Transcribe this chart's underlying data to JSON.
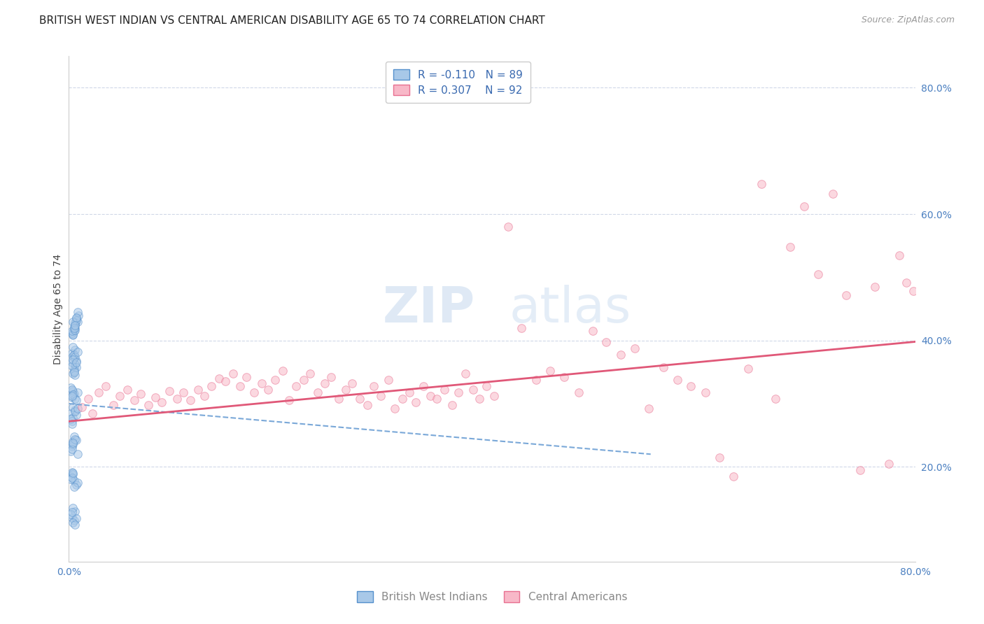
{
  "title": "BRITISH WEST INDIAN VS CENTRAL AMERICAN DISABILITY AGE 65 TO 74 CORRELATION CHART",
  "source": "Source: ZipAtlas.com",
  "ylabel": "Disability Age 65 to 74",
  "xlim": [
    0.0,
    0.8
  ],
  "ylim": [
    0.05,
    0.85
  ],
  "xticks": [
    0.0,
    0.1,
    0.2,
    0.3,
    0.4,
    0.5,
    0.6,
    0.7,
    0.8
  ],
  "xtick_labels": [
    "0.0%",
    "",
    "",
    "",
    "",
    "",
    "",
    "",
    "80.0%"
  ],
  "yticks": [
    0.2,
    0.4,
    0.6,
    0.8
  ],
  "ytick_labels": [
    "20.0%",
    "40.0%",
    "60.0%",
    "80.0%"
  ],
  "blue_scatter_x": [
    0.005,
    0.008,
    0.006,
    0.009,
    0.004,
    0.007,
    0.003,
    0.006,
    0.005,
    0.008,
    0.004,
    0.006,
    0.003,
    0.007,
    0.005,
    0.006,
    0.004,
    0.007,
    0.005,
    0.006,
    0.003,
    0.005,
    0.006,
    0.004,
    0.007,
    0.005,
    0.004,
    0.006,
    0.003,
    0.008,
    0.005,
    0.006,
    0.004,
    0.007,
    0.005,
    0.003,
    0.006,
    0.004,
    0.005,
    0.007,
    0.004,
    0.003,
    0.002,
    0.005,
    0.008,
    0.003,
    0.006,
    0.004,
    0.007,
    0.003,
    0.002,
    0.004,
    0.006,
    0.003,
    0.007,
    0.004,
    0.002,
    0.006,
    0.003,
    0.008,
    0.004,
    0.003,
    0.005,
    0.002,
    0.007,
    0.004,
    0.003,
    0.006,
    0.008,
    0.004,
    0.002,
    0.005,
    0.003,
    0.007,
    0.004,
    0.002,
    0.008,
    0.003,
    0.005,
    0.004,
    0.006,
    0.003,
    0.004,
    0.005,
    0.002,
    0.007,
    0.003,
    0.004,
    0.006
  ],
  "blue_scatter_y": [
    0.415,
    0.43,
    0.42,
    0.44,
    0.408,
    0.435,
    0.412,
    0.425,
    0.418,
    0.445,
    0.41,
    0.428,
    0.415,
    0.432,
    0.422,
    0.416,
    0.43,
    0.436,
    0.42,
    0.424,
    0.38,
    0.372,
    0.385,
    0.375,
    0.368,
    0.378,
    0.39,
    0.374,
    0.365,
    0.382,
    0.355,
    0.362,
    0.348,
    0.358,
    0.352,
    0.36,
    0.345,
    0.37,
    0.35,
    0.365,
    0.32,
    0.31,
    0.325,
    0.315,
    0.318,
    0.322,
    0.308,
    0.314,
    0.305,
    0.312,
    0.285,
    0.278,
    0.29,
    0.272,
    0.282,
    0.295,
    0.276,
    0.288,
    0.268,
    0.292,
    0.24,
    0.232,
    0.248,
    0.225,
    0.242,
    0.236,
    0.228,
    0.244,
    0.22,
    0.238,
    0.185,
    0.178,
    0.192,
    0.172,
    0.188,
    0.18,
    0.175,
    0.183,
    0.168,
    0.19,
    0.13,
    0.12,
    0.135,
    0.115,
    0.125,
    0.118,
    0.128,
    0.112,
    0.108
  ],
  "pink_scatter_x": [
    0.012,
    0.018,
    0.022,
    0.028,
    0.035,
    0.042,
    0.048,
    0.055,
    0.062,
    0.068,
    0.075,
    0.082,
    0.088,
    0.095,
    0.102,
    0.108,
    0.115,
    0.122,
    0.128,
    0.135,
    0.142,
    0.148,
    0.155,
    0.162,
    0.168,
    0.175,
    0.182,
    0.188,
    0.195,
    0.202,
    0.208,
    0.215,
    0.222,
    0.228,
    0.235,
    0.242,
    0.248,
    0.255,
    0.262,
    0.268,
    0.275,
    0.282,
    0.288,
    0.295,
    0.302,
    0.308,
    0.315,
    0.322,
    0.328,
    0.335,
    0.342,
    0.348,
    0.355,
    0.362,
    0.368,
    0.375,
    0.382,
    0.388,
    0.395,
    0.402,
    0.415,
    0.428,
    0.442,
    0.455,
    0.468,
    0.482,
    0.495,
    0.508,
    0.522,
    0.535,
    0.548,
    0.562,
    0.575,
    0.588,
    0.602,
    0.615,
    0.628,
    0.642,
    0.655,
    0.668,
    0.682,
    0.695,
    0.708,
    0.722,
    0.735,
    0.748,
    0.762,
    0.775,
    0.785,
    0.792,
    0.798
  ],
  "pink_scatter_y": [
    0.295,
    0.308,
    0.285,
    0.318,
    0.328,
    0.298,
    0.312,
    0.322,
    0.305,
    0.315,
    0.298,
    0.31,
    0.302,
    0.32,
    0.308,
    0.318,
    0.305,
    0.322,
    0.312,
    0.328,
    0.34,
    0.335,
    0.348,
    0.328,
    0.342,
    0.318,
    0.332,
    0.322,
    0.338,
    0.352,
    0.305,
    0.328,
    0.338,
    0.348,
    0.318,
    0.332,
    0.342,
    0.308,
    0.322,
    0.332,
    0.308,
    0.298,
    0.328,
    0.312,
    0.338,
    0.292,
    0.308,
    0.318,
    0.302,
    0.328,
    0.312,
    0.308,
    0.322,
    0.298,
    0.318,
    0.348,
    0.322,
    0.308,
    0.328,
    0.312,
    0.58,
    0.42,
    0.338,
    0.352,
    0.342,
    0.318,
    0.415,
    0.398,
    0.378,
    0.388,
    0.292,
    0.358,
    0.338,
    0.328,
    0.318,
    0.215,
    0.185,
    0.355,
    0.648,
    0.308,
    0.548,
    0.612,
    0.505,
    0.632,
    0.472,
    0.195,
    0.485,
    0.205,
    0.535,
    0.492,
    0.478
  ],
  "blue_trendline_x": [
    0.0,
    0.55
  ],
  "blue_trendline_y": [
    0.3,
    0.22
  ],
  "pink_trendline_x": [
    0.0,
    0.8
  ],
  "pink_trendline_y": [
    0.272,
    0.398
  ],
  "scatter_size": 70,
  "scatter_alpha": 0.55,
  "blue_color": "#a8c8e8",
  "blue_edge": "#5590cc",
  "pink_color": "#f8b8c8",
  "pink_edge": "#e87090",
  "trendline_blue_color": "#7aa8d8",
  "trendline_pink_color": "#e05878",
  "grid_color": "#d0d8e8",
  "background_color": "#ffffff",
  "title_fontsize": 11,
  "axis_label_fontsize": 10,
  "tick_fontsize": 10,
  "legend_fontsize": 11,
  "legend_text_color": "#3a6ab0",
  "right_tick_color": "#4a7fc0"
}
